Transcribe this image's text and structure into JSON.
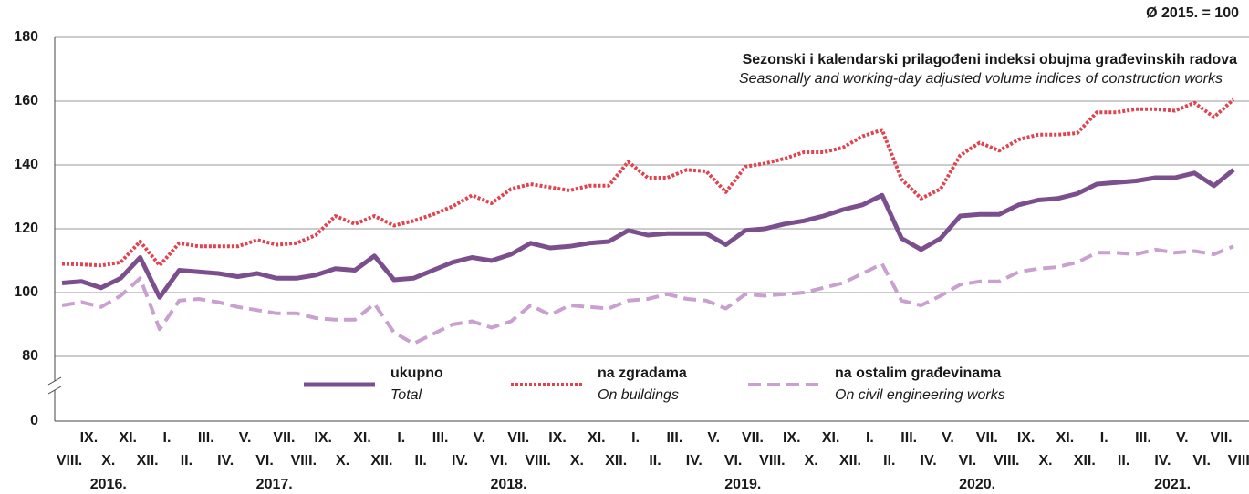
{
  "chart_data": {
    "type": "line",
    "base_note": "Ø 2015. = 100",
    "title": "Sezonski i kalendarski prilagođeni indeksi obujma građevinskih radova",
    "subtitle": "Seasonally and working-day adjusted volume indices of construction works",
    "categories": [
      "VIII.",
      "IX.",
      "X.",
      "XI.",
      "XII.",
      "I.",
      "II.",
      "III.",
      "IV.",
      "V.",
      "VI.",
      "VII.",
      "VIII.",
      "IX.",
      "X.",
      "XI.",
      "XII.",
      "I.",
      "II.",
      "III.",
      "IV.",
      "V.",
      "VI.",
      "VII.",
      "VIII.",
      "IX.",
      "X.",
      "XI.",
      "XII.",
      "I.",
      "II.",
      "III.",
      "IV.",
      "V.",
      "VI.",
      "VII.",
      "VIII.",
      "IX.",
      "X.",
      "XI.",
      "XII.",
      "I.",
      "II.",
      "III.",
      "IV.",
      "V.",
      "VI.",
      "VII.",
      "VIII.",
      "IX.",
      "X.",
      "XI.",
      "XII.",
      "I.",
      "II.",
      "III.",
      "IV.",
      "V.",
      "VI.",
      "VII.",
      "VIII."
    ],
    "years": [
      "2016.",
      "2017.",
      "2018.",
      "2019.",
      "2020.",
      "2021."
    ],
    "ylim": [
      80,
      180
    ],
    "yticks": [
      0,
      80,
      100,
      120,
      140,
      160,
      180
    ],
    "grid": true,
    "axis_break": true,
    "series": [
      {
        "name": "ukupno",
        "name_en": "Total",
        "color": "#7b4f8e",
        "style": "solid",
        "values": [
          103,
          103.5,
          101.5,
          104.5,
          111,
          98.5,
          107,
          106.5,
          106,
          105,
          106,
          104.5,
          104.5,
          105.5,
          107.5,
          107,
          111.5,
          104,
          104.5,
          107,
          109.5,
          111,
          110,
          112,
          115.5,
          114,
          114.5,
          115.5,
          116,
          119.5,
          118,
          118.5,
          118.5,
          118.5,
          115,
          119.5,
          120,
          121.5,
          122.5,
          124,
          126,
          127.5,
          130.5,
          117,
          113.5,
          117,
          124,
          124.5,
          124.5,
          127.5,
          129,
          129.5,
          131,
          134,
          134.5,
          135,
          136,
          136,
          137.5,
          133.5,
          138.5
        ]
      },
      {
        "name": "na zgradama",
        "name_en": "On buildings",
        "color": "#e0434f",
        "style": "dotted",
        "values": [
          109,
          108.8,
          108.5,
          109.5,
          116,
          108.5,
          115.5,
          114.5,
          114.5,
          114.5,
          116.5,
          115,
          115.5,
          118,
          124,
          121.5,
          124,
          121,
          122.5,
          124.5,
          127,
          130.5,
          128,
          132.5,
          134,
          133,
          132,
          133.5,
          133.5,
          141,
          136,
          136,
          138.5,
          138,
          131.5,
          139.5,
          140.5,
          142,
          144,
          144,
          145.5,
          149,
          151,
          135.5,
          129.5,
          132.5,
          143,
          147,
          144.5,
          148,
          149.5,
          149.5,
          150,
          156.5,
          156.5,
          157.5,
          157.5,
          157,
          159.5,
          155,
          160.5
        ]
      },
      {
        "name": "na ostalim građevinama",
        "name_en": "On civil engineering works",
        "color": "#c9a0cf",
        "style": "dashed",
        "values": [
          96,
          97,
          95.5,
          99,
          104.5,
          88.5,
          97.5,
          98,
          97,
          95.5,
          94.5,
          93.5,
          93.5,
          92,
          91.5,
          91.5,
          96.5,
          87.5,
          84,
          87,
          90,
          91,
          89,
          91,
          96,
          93,
          96,
          95.5,
          95,
          97.5,
          98,
          99.5,
          98,
          97.5,
          95,
          99.5,
          99,
          99.5,
          100,
          101.5,
          103,
          106,
          109,
          97.5,
          96,
          99,
          102.5,
          103.5,
          103.5,
          106.5,
          107.5,
          108,
          109.5,
          112.5,
          112.5,
          112,
          113.5,
          112.5,
          113,
          112,
          114.5
        ]
      }
    ]
  }
}
